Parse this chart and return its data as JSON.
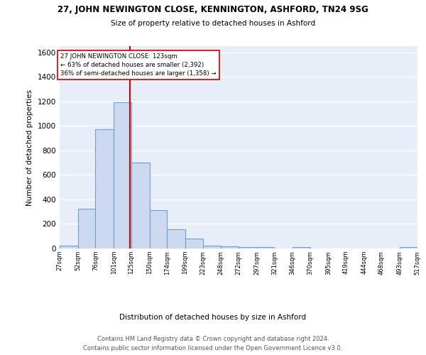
{
  "title_line1": "27, JOHN NEWINGTON CLOSE, KENNINGTON, ASHFORD, TN24 9SG",
  "title_line2": "Size of property relative to detached houses in Ashford",
  "xlabel": "Distribution of detached houses by size in Ashford",
  "ylabel": "Number of detached properties",
  "bin_edges": [
    27,
    52,
    76,
    101,
    125,
    150,
    174,
    199,
    223,
    248,
    272,
    297,
    321,
    346,
    370,
    395,
    419,
    444,
    468,
    493,
    517
  ],
  "bar_heights": [
    25,
    325,
    970,
    1195,
    700,
    310,
    155,
    80,
    25,
    15,
    10,
    10,
    0,
    10,
    0,
    0,
    0,
    0,
    0,
    10
  ],
  "bar_color": "#ccd9ee",
  "bar_edge_color": "#6a9fd8",
  "property_size": 123,
  "annotation_line1": "27 JOHN NEWINGTON CLOSE: 123sqm",
  "annotation_line2": "← 63% of detached houses are smaller (2,392)",
  "annotation_line3": "36% of semi-detached houses are larger (1,358) →",
  "vline_color": "#cc0000",
  "annotation_box_edge": "#cc0000",
  "ylim": [
    0,
    1650
  ],
  "yticks": [
    0,
    200,
    400,
    600,
    800,
    1000,
    1200,
    1400,
    1600
  ],
  "background_color": "#e8eef8",
  "grid_color": "#ffffff",
  "footer_line1": "Contains HM Land Registry data © Crown copyright and database right 2024.",
  "footer_line2": "Contains public sector information licensed under the Open Government Licence v3.0.",
  "tick_labels": [
    "27sqm",
    "52sqm",
    "76sqm",
    "101sqm",
    "125sqm",
    "150sqm",
    "174sqm",
    "199sqm",
    "223sqm",
    "248sqm",
    "272sqm",
    "297sqm",
    "321sqm",
    "346sqm",
    "370sqm",
    "395sqm",
    "419sqm",
    "444sqm",
    "468sqm",
    "493sqm",
    "517sqm"
  ]
}
